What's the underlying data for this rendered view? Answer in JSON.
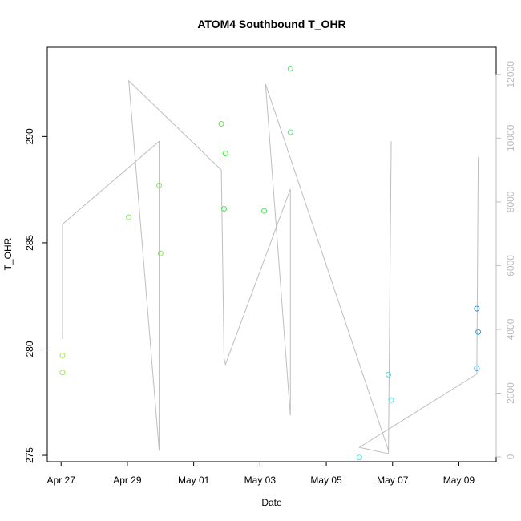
{
  "chart_data": {
    "type": "scatter",
    "title": "ATOM4 Southbound T_OHR",
    "xlabel": "Date",
    "ylabel": "T_OHR",
    "x_ticks": [
      "Apr 27",
      "Apr 29",
      "May 01",
      "May 03",
      "May 05",
      "May 07",
      "May 09"
    ],
    "y_ticks": [
      "275",
      "280",
      "285",
      "290"
    ],
    "y2_ticks": [
      "0",
      "2000",
      "4000",
      "6000",
      "8000",
      "10000",
      "12000"
    ],
    "ylim": [
      274.7,
      294.2
    ],
    "y2lim": [
      -150,
      12850
    ],
    "xlim": [
      "2017-04-26 14:00",
      "2017-05-10 03:00"
    ],
    "grid": false,
    "legend": "none",
    "series": [
      {
        "kind": "points",
        "values": [
          {
            "x": "2017-04-27 01:00",
            "y": 279.7,
            "color": "#9ee84a"
          },
          {
            "x": "2017-04-27 01:00",
            "y": 278.9,
            "color": "#9ee84a"
          },
          {
            "x": "2017-04-29 01:00",
            "y": 286.2,
            "color": "#80e84a"
          },
          {
            "x": "2017-04-29 23:00",
            "y": 287.7,
            "color": "#7ee84a"
          },
          {
            "x": "2017-04-30 00:00",
            "y": 284.5,
            "color": "#7ee84a"
          },
          {
            "x": "2017-05-01 20:00",
            "y": 290.6,
            "color": "#4ee84a"
          },
          {
            "x": "2017-05-01 22:00",
            "y": 286.6,
            "color": "#4ee84a"
          },
          {
            "x": "2017-05-01 23:00",
            "y": 289.2,
            "color": "#4ee84a"
          },
          {
            "x": "2017-05-03 03:00",
            "y": 286.5,
            "color": "#4ee860"
          },
          {
            "x": "2017-05-03 22:00",
            "y": 293.2,
            "color": "#4ee87a"
          },
          {
            "x": "2017-05-03 22:00",
            "y": 290.2,
            "color": "#4ee87a"
          },
          {
            "x": "2017-05-06 00:00",
            "y": 274.9,
            "color": "#40e8e0"
          },
          {
            "x": "2017-05-06 21:00",
            "y": 278.8,
            "color": "#40e0e8"
          },
          {
            "x": "2017-05-06 23:00",
            "y": 277.6,
            "color": "#40e0e8"
          },
          {
            "x": "2017-05-09 13:00",
            "y": 281.9,
            "color": "#2a9ee0"
          },
          {
            "x": "2017-05-09 14:00",
            "y": 280.8,
            "color": "#2a9ee0"
          },
          {
            "x": "2017-05-09 13:00",
            "y": 279.1,
            "color": "#2a9ee0"
          }
        ]
      },
      {
        "kind": "line",
        "axis": "right",
        "color": "#bebebe",
        "values": [
          {
            "x": "2017-04-27 01:00",
            "y": 3700
          },
          {
            "x": "2017-04-27 01:00",
            "y": 7300
          },
          {
            "x": "2017-04-29 23:00",
            "y": 9900
          },
          {
            "x": "2017-04-29 23:00",
            "y": 200
          },
          {
            "x": "2017-04-29 01:00",
            "y": 11800
          },
          {
            "x": "2017-05-01 20:00",
            "y": 9000
          },
          {
            "x": "2017-05-01 22:00",
            "y": 3100
          },
          {
            "x": "2017-05-01 23:00",
            "y": 2900
          },
          {
            "x": "2017-05-03 22:00",
            "y": 8400
          },
          {
            "x": "2017-05-03 22:00",
            "y": 1300
          },
          {
            "x": "2017-05-03 04:00",
            "y": 11700
          },
          {
            "x": "2017-05-06 21:00",
            "y": 200
          },
          {
            "x": "2017-05-06 23:00",
            "y": 9900
          },
          {
            "x": "2017-05-06 21:00",
            "y": 100
          },
          {
            "x": "2017-05-06 00:00",
            "y": 300
          },
          {
            "x": "2017-05-09 13:00",
            "y": 2600
          },
          {
            "x": "2017-05-09 14:00",
            "y": 9400
          }
        ]
      }
    ]
  }
}
